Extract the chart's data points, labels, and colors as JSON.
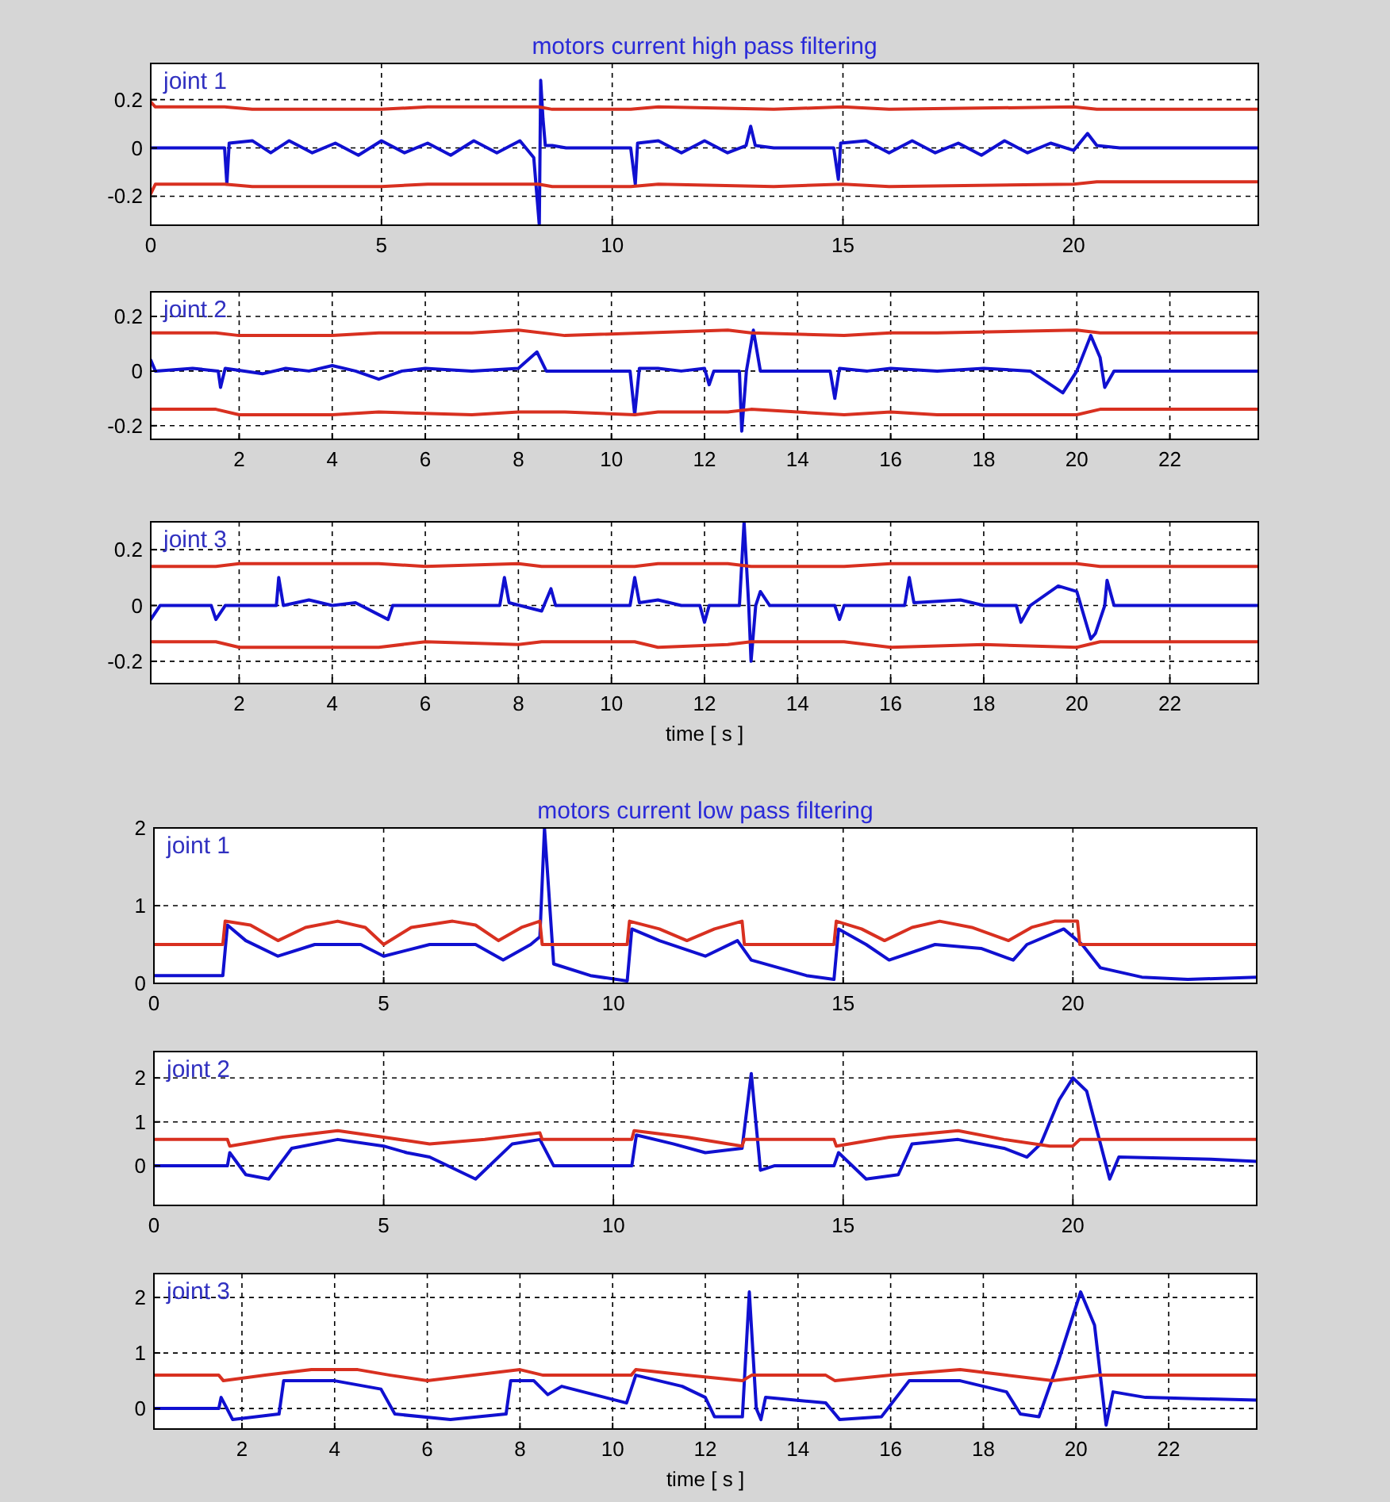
{
  "chart_data": [
    {
      "type": "line",
      "title": "motors current high pass filtering",
      "annotations": [
        "joint 1"
      ],
      "xlim": [
        0,
        24
      ],
      "xticks": [
        0,
        5,
        10,
        15,
        20
      ],
      "ylim": [
        -0.32,
        0.35
      ],
      "yticks": [
        -0.2,
        0,
        0.2
      ],
      "grid": true,
      "series": [
        {
          "color": "#1010d0",
          "x": [
            0,
            1.6,
            1.65,
            1.7,
            2.2,
            2.6,
            3,
            3.5,
            4,
            4.5,
            5,
            5.5,
            6,
            6.5,
            7,
            7.5,
            8,
            8.3,
            8.42,
            8.45,
            8.5,
            8.55,
            8.7,
            9,
            10.4,
            10.5,
            10.55,
            11,
            11.5,
            12,
            12.5,
            12.9,
            13,
            13.1,
            13.5,
            14.8,
            14.9,
            14.95,
            15.5,
            16,
            16.5,
            17,
            17.5,
            18,
            18.5,
            19,
            19.5,
            20,
            20.3,
            20.5,
            21,
            24
          ],
          "values": [
            0,
            0,
            -0.15,
            0.02,
            0.03,
            -0.02,
            0.03,
            -0.02,
            0.02,
            -0.03,
            0.03,
            -0.02,
            0.02,
            -0.03,
            0.03,
            -0.02,
            0.03,
            -0.04,
            -0.32,
            0.28,
            0.12,
            0.01,
            0.01,
            0,
            0,
            -0.15,
            0.02,
            0.03,
            -0.02,
            0.03,
            -0.02,
            0.01,
            0.09,
            0.01,
            0,
            0,
            -0.13,
            0.02,
            0.03,
            -0.02,
            0.03,
            -0.02,
            0.02,
            -0.03,
            0.03,
            -0.02,
            0.02,
            -0.01,
            0.06,
            0.01,
            0,
            0
          ]
        },
        {
          "color": "#d83020",
          "x": [
            0,
            0.1,
            1.6,
            2.2,
            5,
            6,
            8.4,
            8.7,
            10.4,
            11,
            13.5,
            15,
            16,
            20,
            20.5,
            24
          ],
          "values": [
            0.19,
            0.17,
            0.17,
            0.16,
            0.16,
            0.17,
            0.17,
            0.16,
            0.16,
            0.17,
            0.16,
            0.17,
            0.16,
            0.17,
            0.16,
            0.16
          ]
        },
        {
          "color": "#d83020",
          "x": [
            0,
            0.1,
            1.6,
            2.2,
            5,
            6,
            8.4,
            8.7,
            10.4,
            11,
            13.5,
            15,
            16,
            20,
            20.5,
            24
          ],
          "values": [
            -0.19,
            -0.15,
            -0.15,
            -0.16,
            -0.16,
            -0.15,
            -0.15,
            -0.16,
            -0.16,
            -0.15,
            -0.16,
            -0.15,
            -0.16,
            -0.15,
            -0.14,
            -0.14
          ]
        }
      ]
    },
    {
      "type": "line",
      "annotations": [
        "joint 2"
      ],
      "xlim": [
        0.1,
        23.9
      ],
      "xticks": [
        2,
        4,
        6,
        8,
        10,
        12,
        14,
        16,
        18,
        20,
        22
      ],
      "ylim": [
        -0.25,
        0.29
      ],
      "yticks": [
        -0.2,
        0,
        0.2
      ],
      "grid": true,
      "series": [
        {
          "color": "#1010d0",
          "x": [
            0.1,
            0.2,
            1,
            1.55,
            1.6,
            1.7,
            2.5,
            3,
            3.5,
            4,
            4.5,
            5,
            5.5,
            6,
            7,
            8,
            8.4,
            8.6,
            9,
            10.4,
            10.5,
            10.6,
            11,
            11.5,
            12,
            12.1,
            12.2,
            12.75,
            12.8,
            12.9,
            13.05,
            13.2,
            13.5,
            14.7,
            14.8,
            14.9,
            15.5,
            16,
            17,
            18,
            19,
            19.7,
            20,
            20.3,
            20.5,
            20.6,
            20.8,
            22,
            23.9
          ],
          "values": [
            0.04,
            0,
            0.01,
            0,
            -0.06,
            0.01,
            -0.01,
            0.01,
            0,
            0.02,
            0,
            -0.03,
            0,
            0.01,
            0,
            0.01,
            0.07,
            0,
            0,
            0,
            -0.16,
            0.01,
            0.01,
            0,
            0.01,
            -0.05,
            0,
            0,
            -0.22,
            0,
            0.15,
            0,
            0,
            0,
            -0.1,
            0.01,
            0,
            0.01,
            0,
            0.01,
            0,
            -0.08,
            0,
            0.13,
            0.05,
            -0.06,
            0,
            0,
            0
          ]
        },
        {
          "color": "#d83020",
          "x": [
            0.1,
            1.5,
            2,
            4,
            5,
            7,
            8,
            9,
            12.5,
            13,
            15,
            16,
            17,
            20,
            20.5,
            23.9
          ],
          "values": [
            0.14,
            0.14,
            0.13,
            0.13,
            0.14,
            0.14,
            0.15,
            0.13,
            0.15,
            0.14,
            0.13,
            0.14,
            0.14,
            0.15,
            0.14,
            0.14
          ]
        },
        {
          "color": "#d83020",
          "x": [
            0.1,
            1.5,
            2,
            4,
            5,
            7,
            8,
            9,
            10.5,
            11,
            12.5,
            13,
            15,
            16,
            17,
            20,
            20.5,
            23.9
          ],
          "values": [
            -0.14,
            -0.14,
            -0.16,
            -0.16,
            -0.15,
            -0.16,
            -0.15,
            -0.15,
            -0.16,
            -0.15,
            -0.15,
            -0.14,
            -0.16,
            -0.15,
            -0.16,
            -0.16,
            -0.14,
            -0.14
          ]
        }
      ]
    },
    {
      "type": "line",
      "annotations": [
        "joint 3"
      ],
      "xlabel": "time [ s ]",
      "xlim": [
        0.1,
        23.9
      ],
      "xticks": [
        2,
        4,
        6,
        8,
        10,
        12,
        14,
        16,
        18,
        20,
        22
      ],
      "ylim": [
        -0.28,
        0.3
      ],
      "yticks": [
        -0.2,
        0,
        0.2
      ],
      "grid": true,
      "series": [
        {
          "color": "#1010d0",
          "x": [
            0.1,
            0.3,
            1.4,
            1.5,
            1.7,
            2.8,
            2.85,
            2.95,
            3.5,
            4,
            4.5,
            5.2,
            5.3,
            5.5,
            7.6,
            7.7,
            7.8,
            8.5,
            8.7,
            8.8,
            10.4,
            10.5,
            10.6,
            11,
            11.5,
            11.9,
            12,
            12.1,
            12.75,
            12.85,
            12.95,
            13.0,
            13.1,
            13.2,
            13.4,
            14.8,
            14.9,
            15,
            16.3,
            16.4,
            16.5,
            17.5,
            18,
            18.7,
            18.8,
            19,
            19.6,
            20.0,
            20.3,
            20.4,
            20.6,
            20.65,
            20.8,
            22,
            23.9
          ],
          "values": [
            -0.05,
            0,
            0,
            -0.05,
            0,
            0,
            0.1,
            0,
            0.02,
            0,
            0.01,
            -0.05,
            0,
            0,
            0,
            0.1,
            0.01,
            -0.02,
            0.06,
            0,
            0,
            0.1,
            0.01,
            0.02,
            0,
            0,
            -0.06,
            0,
            0,
            0.3,
            0,
            -0.2,
            0,
            0.05,
            0,
            0,
            -0.05,
            0,
            0,
            0.1,
            0.01,
            0.02,
            0,
            0,
            -0.06,
            0,
            0.07,
            0.05,
            -0.12,
            -0.1,
            0,
            0.09,
            0,
            0,
            0
          ]
        },
        {
          "color": "#d83020",
          "x": [
            0.1,
            1.5,
            2,
            5,
            6,
            8,
            8.5,
            10.5,
            11,
            12.5,
            13,
            15,
            16,
            20,
            20.5,
            23.9
          ],
          "values": [
            0.14,
            0.14,
            0.15,
            0.15,
            0.14,
            0.15,
            0.14,
            0.14,
            0.15,
            0.15,
            0.14,
            0.14,
            0.15,
            0.15,
            0.14,
            0.14
          ]
        },
        {
          "color": "#d83020",
          "x": [
            0.1,
            1.5,
            2,
            5,
            6,
            8,
            8.5,
            10.5,
            11,
            12.5,
            13,
            15,
            16,
            18,
            20,
            20.5,
            23.9
          ],
          "values": [
            -0.13,
            -0.13,
            -0.15,
            -0.15,
            -0.13,
            -0.14,
            -0.13,
            -0.13,
            -0.15,
            -0.14,
            -0.13,
            -0.13,
            -0.15,
            -0.14,
            -0.15,
            -0.13,
            -0.13
          ]
        }
      ]
    },
    {
      "type": "line",
      "title": "motors current low pass filtering",
      "annotations": [
        "joint 1"
      ],
      "xlim": [
        0,
        24
      ],
      "xticks": [
        0,
        5,
        10,
        15,
        20
      ],
      "ylim": [
        0,
        2
      ],
      "yticks": [
        0,
        1,
        2
      ],
      "grid": true,
      "series": [
        {
          "color": "#1010d0",
          "x": [
            0,
            1.5,
            1.6,
            2,
            2.7,
            3.5,
            4.5,
            5,
            6,
            7,
            7.6,
            8.2,
            8.4,
            8.5,
            8.7,
            9.5,
            10.3,
            10.4,
            11,
            12,
            12.7,
            13,
            14.2,
            14.8,
            14.9,
            15.5,
            16,
            17,
            18,
            18.7,
            19,
            19.8,
            20.2,
            20.6,
            21.5,
            22.5,
            24
          ],
          "values": [
            0.1,
            0.1,
            0.75,
            0.55,
            0.35,
            0.5,
            0.5,
            0.35,
            0.5,
            0.5,
            0.3,
            0.5,
            0.6,
            2.0,
            0.25,
            0.1,
            0.03,
            0.7,
            0.55,
            0.35,
            0.55,
            0.3,
            0.1,
            0.05,
            0.7,
            0.5,
            0.3,
            0.5,
            0.45,
            0.3,
            0.5,
            0.7,
            0.5,
            0.2,
            0.08,
            0.05,
            0.08
          ]
        },
        {
          "color": "#d83020",
          "x": [
            0,
            1.5,
            1.55,
            2.1,
            2.7,
            3.3,
            4,
            4.6,
            5,
            5.6,
            6.5,
            7,
            7.5,
            8,
            8.4,
            8.45,
            10.3,
            10.35,
            11,
            11.6,
            12.2,
            12.8,
            12.85,
            14.8,
            14.85,
            15.4,
            15.9,
            16.5,
            17.1,
            17.8,
            18.6,
            19.1,
            19.6,
            20.1,
            20.15,
            24
          ],
          "values": [
            0.5,
            0.5,
            0.8,
            0.75,
            0.55,
            0.72,
            0.8,
            0.72,
            0.5,
            0.72,
            0.8,
            0.75,
            0.55,
            0.72,
            0.8,
            0.5,
            0.5,
            0.8,
            0.7,
            0.55,
            0.7,
            0.8,
            0.5,
            0.5,
            0.8,
            0.7,
            0.55,
            0.72,
            0.8,
            0.72,
            0.55,
            0.72,
            0.8,
            0.8,
            0.5,
            0.5
          ]
        }
      ]
    },
    {
      "type": "line",
      "annotations": [
        "joint 2"
      ],
      "xlim": [
        0,
        24
      ],
      "xticks": [
        0,
        5,
        10,
        15,
        20
      ],
      "ylim": [
        -0.9,
        2.6
      ],
      "yticks": [
        0,
        1,
        2
      ],
      "grid": true,
      "series": [
        {
          "color": "#1010d0",
          "x": [
            0,
            1.6,
            1.65,
            2,
            2.5,
            3,
            4,
            5,
            5.5,
            6,
            7,
            7.8,
            8.4,
            8.7,
            10.4,
            10.5,
            11.3,
            12,
            12.8,
            13.0,
            13.2,
            13.5,
            14.8,
            14.9,
            15.5,
            16.2,
            16.5,
            17.5,
            18.5,
            19,
            19.3,
            19.7,
            20,
            20.3,
            20.8,
            21,
            23,
            24
          ],
          "values": [
            0,
            0,
            0.3,
            -0.2,
            -0.3,
            0.4,
            0.6,
            0.45,
            0.3,
            0.2,
            -0.3,
            0.5,
            0.6,
            0,
            0,
            0.7,
            0.5,
            0.3,
            0.4,
            2.1,
            -0.1,
            0,
            0,
            0.3,
            -0.3,
            -0.2,
            0.5,
            0.6,
            0.4,
            0.2,
            0.5,
            1.5,
            2.0,
            1.7,
            -0.3,
            0.2,
            0.15,
            0.1
          ]
        },
        {
          "color": "#d83020",
          "x": [
            0,
            1.6,
            1.65,
            2.8,
            4,
            5,
            6,
            7.2,
            8.4,
            8.45,
            10.4,
            10.45,
            11.6,
            12.8,
            12.85,
            14.8,
            14.85,
            16,
            17.5,
            18.5,
            19.5,
            20,
            20.15,
            24
          ],
          "values": [
            0.6,
            0.6,
            0.45,
            0.65,
            0.8,
            0.65,
            0.5,
            0.6,
            0.75,
            0.6,
            0.6,
            0.8,
            0.65,
            0.45,
            0.6,
            0.6,
            0.45,
            0.65,
            0.8,
            0.6,
            0.45,
            0.45,
            0.6,
            0.6
          ]
        }
      ]
    },
    {
      "type": "line",
      "annotations": [
        "joint 3"
      ],
      "xlabel": "time [ s ]",
      "xlim": [
        0.1,
        23.9
      ],
      "xticks": [
        2,
        4,
        6,
        8,
        10,
        12,
        14,
        16,
        18,
        20,
        22
      ],
      "ylim": [
        -0.37,
        2.43
      ],
      "yticks": [
        0,
        1,
        2
      ],
      "grid": true,
      "series": [
        {
          "color": "#1010d0",
          "x": [
            0.1,
            1.5,
            1.55,
            1.8,
            2.8,
            2.9,
            4,
            5,
            5.3,
            6.5,
            7.7,
            7.8,
            8.3,
            8.6,
            8.9,
            10.3,
            10.5,
            11.5,
            12,
            12.2,
            12.8,
            12.95,
            13.1,
            13.2,
            13.3,
            14.6,
            14.9,
            15.8,
            16.4,
            17.5,
            18.5,
            18.8,
            19.2,
            19.6,
            20.1,
            20.4,
            20.65,
            20.8,
            21.5,
            23.9
          ],
          "values": [
            0,
            0,
            0.2,
            -0.2,
            -0.1,
            0.5,
            0.5,
            0.35,
            -0.1,
            -0.2,
            -0.1,
            0.5,
            0.5,
            0.25,
            0.4,
            0.1,
            0.6,
            0.4,
            0.2,
            -0.15,
            -0.15,
            2.1,
            0,
            -0.2,
            0.2,
            0.1,
            -0.2,
            -0.15,
            0.5,
            0.5,
            0.3,
            -0.1,
            -0.15,
            0.8,
            2.1,
            1.5,
            -0.3,
            0.3,
            0.2,
            0.15
          ]
        },
        {
          "color": "#d83020",
          "x": [
            0.1,
            1.5,
            1.6,
            2.5,
            3.5,
            4.5,
            5.2,
            6,
            7,
            8,
            8.5,
            10.4,
            10.5,
            11.6,
            12.8,
            13,
            14.6,
            14.8,
            16,
            17.5,
            18.5,
            19.5,
            20.5,
            23.9
          ],
          "values": [
            0.6,
            0.6,
            0.5,
            0.6,
            0.7,
            0.7,
            0.6,
            0.5,
            0.6,
            0.7,
            0.6,
            0.6,
            0.7,
            0.6,
            0.5,
            0.6,
            0.6,
            0.5,
            0.6,
            0.7,
            0.6,
            0.5,
            0.6,
            0.6
          ]
        }
      ]
    }
  ]
}
